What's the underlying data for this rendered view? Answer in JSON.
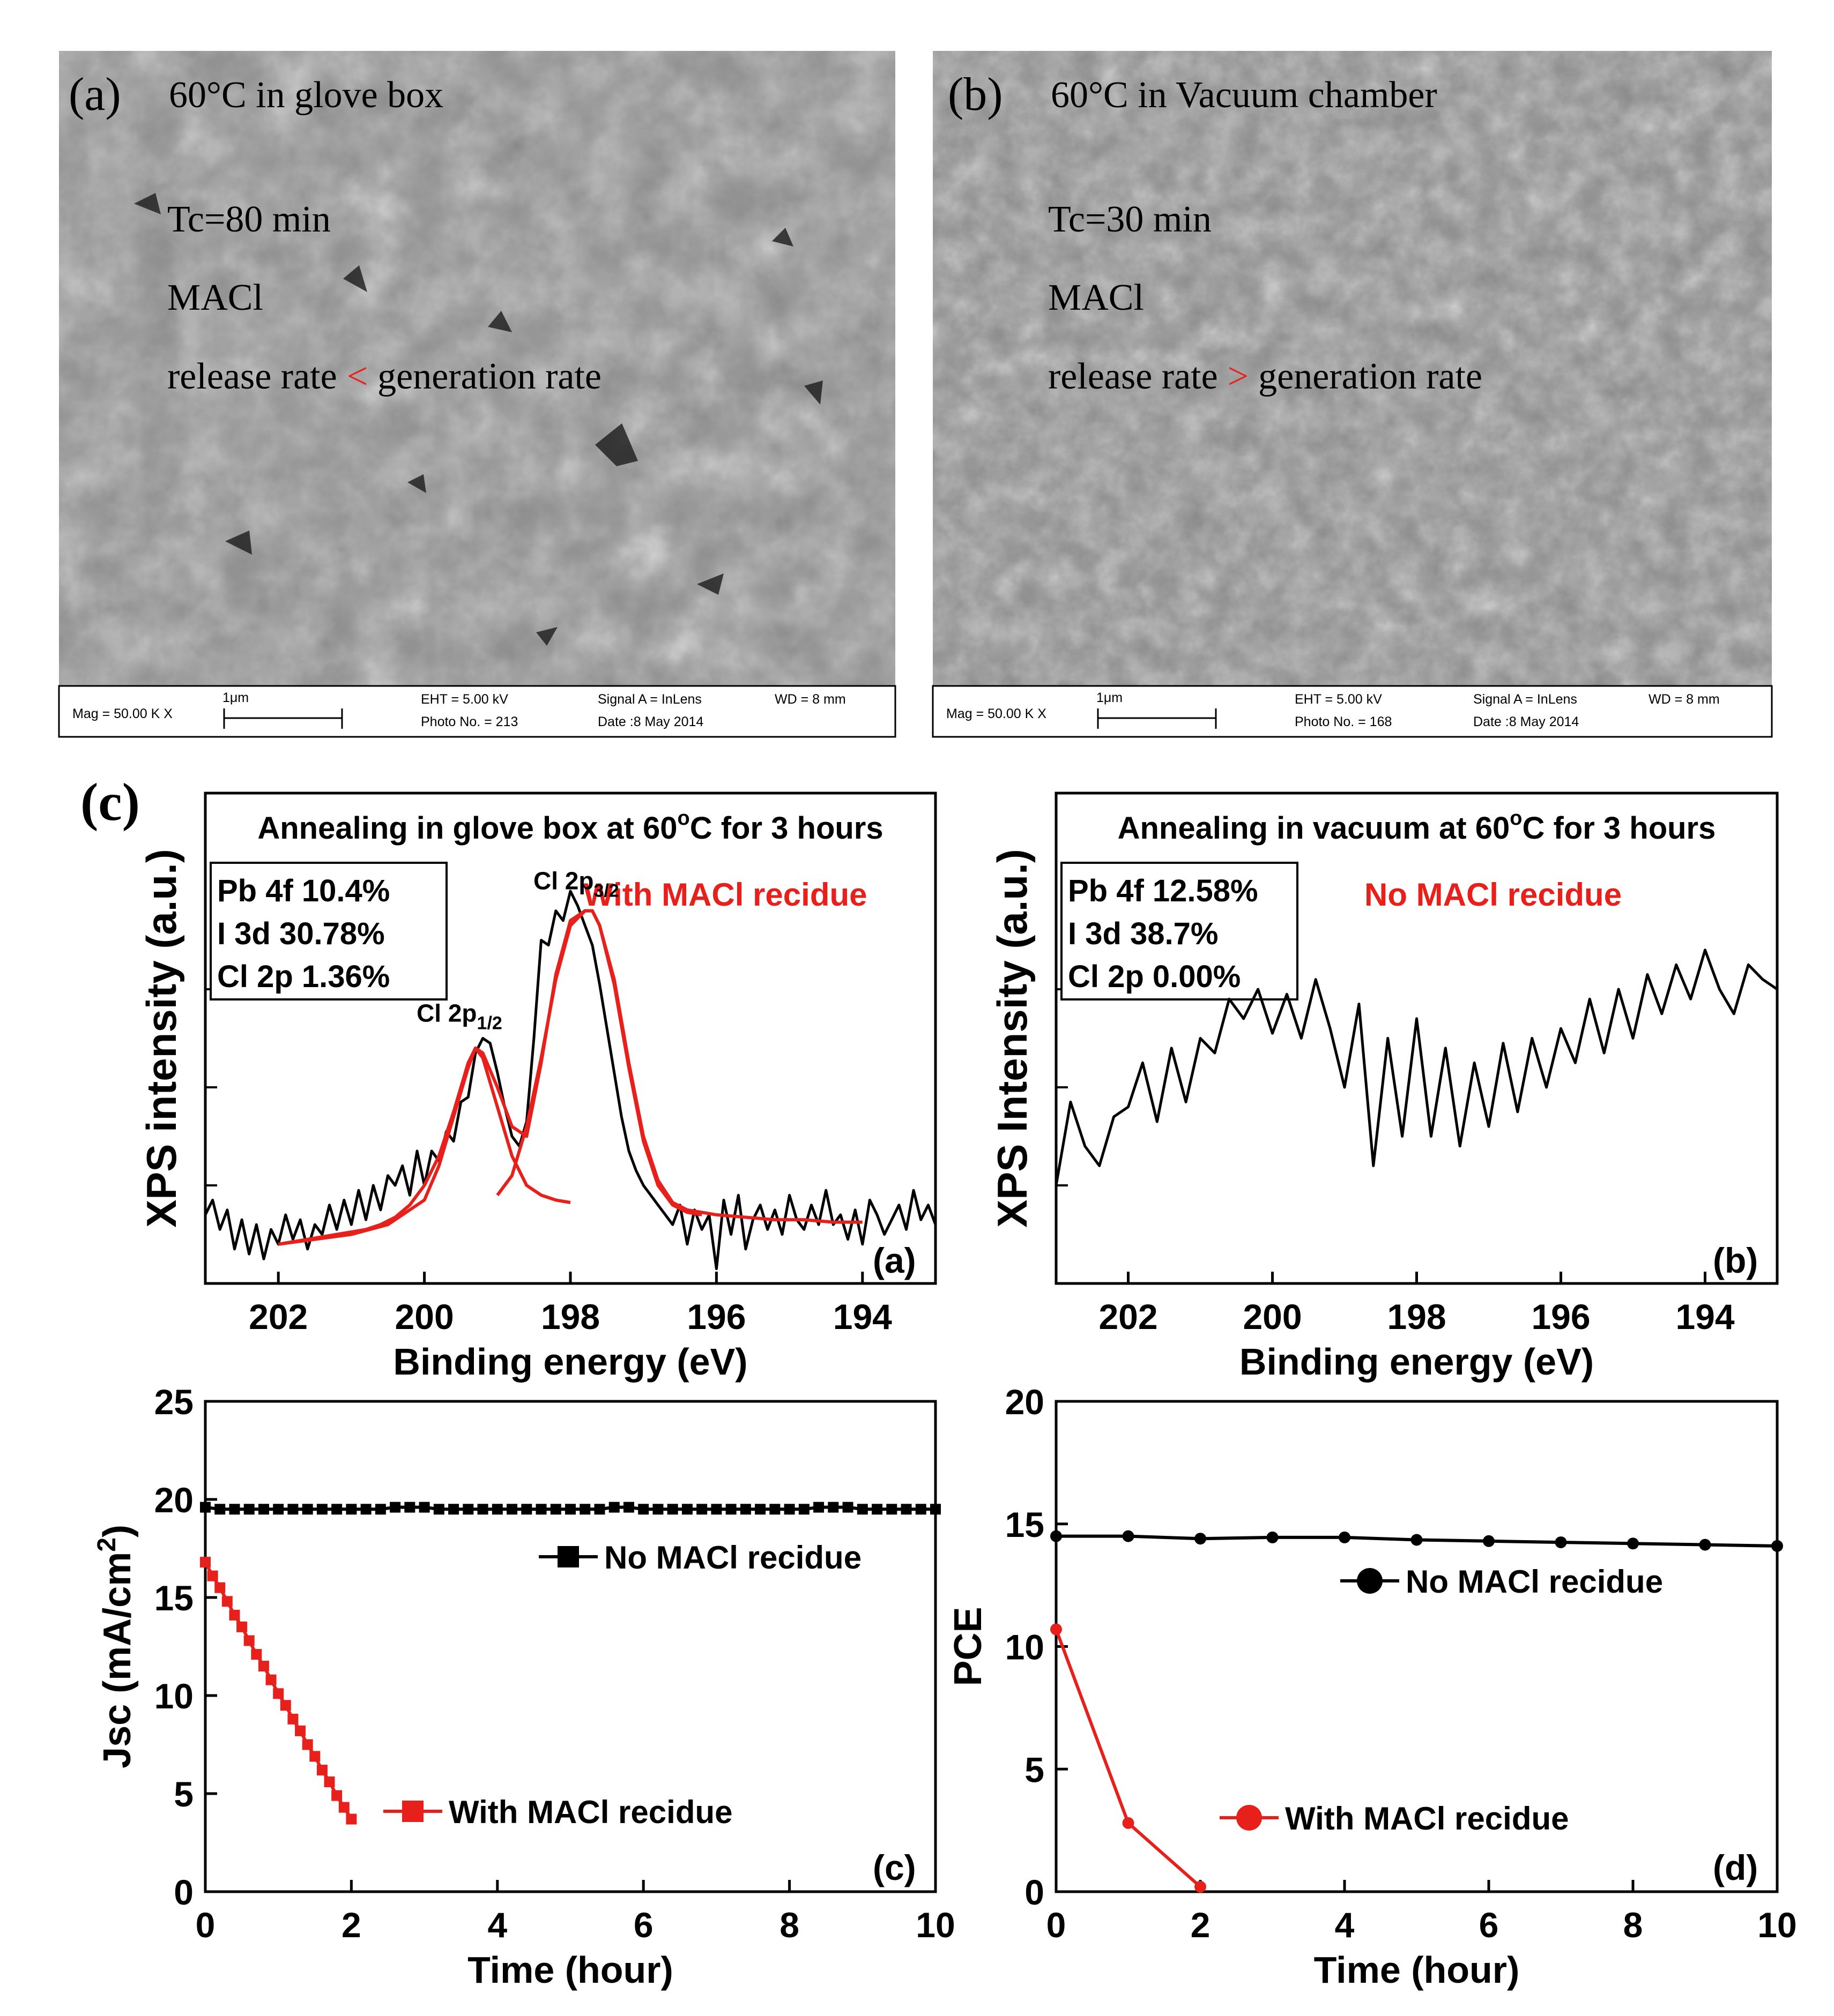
{
  "figure_label_c": "(c)",
  "sem": [
    {
      "id": "a",
      "label": "(a)",
      "title": "60°C in glove box",
      "tc": "Tc=80 min",
      "material": "MACl",
      "rate_left": "release rate",
      "rate_symbol": "<",
      "rate_right": "generation rate",
      "footer": {
        "mag": "Mag =  50.00 K X",
        "scale": "1μm",
        "eht": "EHT =  5.00 kV",
        "photo": "Photo No. = 213",
        "signal": "Signal A = InLens",
        "date": "Date :8 May 2014",
        "wd": "WD =    8 mm"
      }
    },
    {
      "id": "b",
      "label": "(b)",
      "title": "60°C in Vacuum chamber",
      "tc": "Tc=30 min",
      "material": "MACl",
      "rate_left": "release rate",
      "rate_symbol": ">",
      "rate_right": "generation rate",
      "footer": {
        "mag": "Mag =  50.00 K X",
        "scale": "1μm",
        "eht": "EHT =  5.00 kV",
        "photo": "Photo No. = 168",
        "signal": "Signal A = InLens",
        "date": "Date :8 May 2014",
        "wd": "WD =    8 mm"
      }
    }
  ],
  "colors": {
    "black": "#000000",
    "red": "#e8201c",
    "sem_gray": "#8c8c8c"
  },
  "chart_data": [
    {
      "type": "line",
      "panel": "(a)",
      "title": "Annealing in glove box at 60°C for 3 hours",
      "title_main": "Annealing in glove box at 60",
      "title_deg": "o",
      "title_tail": "C for 3 hours",
      "xlabel": "Binding energy (eV)",
      "ylabel": "XPS intensity (a.u.)",
      "xlim": [
        203,
        193
      ],
      "ylim": [
        0,
        1
      ],
      "xticks": [
        "202",
        "200",
        "198",
        "196",
        "194"
      ],
      "xtick_values": [
        202,
        200,
        198,
        196,
        194
      ],
      "composition": [
        "Pb 4f  10.4%",
        "I    3d 30.78%",
        "Cl  2p 1.36%"
      ],
      "note": "With MACl recidue",
      "peak_labels": [
        {
          "main": "Cl 2p",
          "sub": "1/2",
          "x": 199.3,
          "y": 0.49
        },
        {
          "main": "Cl 2p",
          "sub": "3/2",
          "x": 197.7,
          "y": 0.76
        }
      ],
      "series": [
        {
          "name": "raw",
          "color": "#000000",
          "x": [
            203.0,
            202.9,
            202.8,
            202.7,
            202.6,
            202.5,
            202.4,
            202.3,
            202.2,
            202.1,
            202.0,
            201.9,
            201.8,
            201.7,
            201.6,
            201.5,
            201.4,
            201.3,
            201.2,
            201.1,
            201.0,
            200.9,
            200.8,
            200.7,
            200.6,
            200.5,
            200.4,
            200.3,
            200.2,
            200.1,
            200.0,
            199.9,
            199.8,
            199.7,
            199.6,
            199.5,
            199.4,
            199.3,
            199.2,
            199.1,
            199.0,
            198.9,
            198.8,
            198.7,
            198.6,
            198.5,
            198.4,
            198.3,
            198.2,
            198.1,
            198.0,
            197.9,
            197.8,
            197.7,
            197.6,
            197.5,
            197.4,
            197.3,
            197.2,
            197.1,
            197.0,
            196.9,
            196.8,
            196.7,
            196.6,
            196.5,
            196.4,
            196.3,
            196.2,
            196.1,
            196.0,
            195.9,
            195.8,
            195.7,
            195.6,
            195.5,
            195.4,
            195.3,
            195.2,
            195.1,
            195.0,
            194.9,
            194.8,
            194.7,
            194.6,
            194.5,
            194.4,
            194.3,
            194.2,
            194.1,
            194.0,
            193.9,
            193.8,
            193.7,
            193.6,
            193.5,
            193.4,
            193.3,
            193.2,
            193.1,
            193.0
          ],
          "y": [
            0.14,
            0.17,
            0.11,
            0.15,
            0.07,
            0.13,
            0.06,
            0.12,
            0.05,
            0.11,
            0.08,
            0.14,
            0.09,
            0.13,
            0.07,
            0.12,
            0.1,
            0.16,
            0.11,
            0.17,
            0.12,
            0.19,
            0.13,
            0.2,
            0.15,
            0.22,
            0.2,
            0.24,
            0.18,
            0.27,
            0.2,
            0.27,
            0.25,
            0.31,
            0.29,
            0.37,
            0.38,
            0.47,
            0.5,
            0.49,
            0.43,
            0.36,
            0.3,
            0.28,
            0.33,
            0.5,
            0.7,
            0.69,
            0.76,
            0.74,
            0.8,
            0.77,
            0.73,
            0.69,
            0.61,
            0.52,
            0.43,
            0.34,
            0.27,
            0.23,
            0.2,
            0.18,
            0.16,
            0.14,
            0.12,
            0.16,
            0.08,
            0.15,
            0.11,
            0.14,
            0.03,
            0.17,
            0.1,
            0.18,
            0.07,
            0.13,
            0.16,
            0.11,
            0.15,
            0.1,
            0.18,
            0.13,
            0.11,
            0.16,
            0.12,
            0.19,
            0.12,
            0.14,
            0.09,
            0.15,
            0.08,
            0.17,
            0.14,
            0.1,
            0.13,
            0.16,
            0.11,
            0.19,
            0.13,
            0.16,
            0.12
          ]
        },
        {
          "name": "fit",
          "color": "#e8201c",
          "x": [
            202.0,
            201.8,
            201.6,
            201.4,
            201.2,
            201.0,
            200.8,
            200.6,
            200.4,
            200.2,
            200.0,
            199.8,
            199.6,
            199.4,
            199.3,
            199.2,
            199.0,
            198.8,
            198.6,
            198.4,
            198.2,
            198.0,
            197.8,
            197.7,
            197.6,
            197.4,
            197.2,
            197.0,
            196.8,
            196.6,
            196.4,
            196.2,
            196.0,
            195.6,
            195.2,
            194.8,
            194.4,
            194.0
          ],
          "y": [
            0.08,
            0.085,
            0.09,
            0.095,
            0.1,
            0.105,
            0.11,
            0.12,
            0.135,
            0.16,
            0.2,
            0.26,
            0.35,
            0.45,
            0.48,
            0.47,
            0.4,
            0.32,
            0.3,
            0.45,
            0.63,
            0.74,
            0.76,
            0.76,
            0.73,
            0.62,
            0.45,
            0.3,
            0.21,
            0.165,
            0.15,
            0.145,
            0.14,
            0.135,
            0.13,
            0.13,
            0.125,
            0.125
          ]
        },
        {
          "name": "fit_peak_1/2",
          "color": "#e8201c",
          "x": [
            202.0,
            201.5,
            201.0,
            200.5,
            200.0,
            199.8,
            199.6,
            199.4,
            199.3,
            199.2,
            199.0,
            198.8,
            198.6,
            198.4,
            198.2,
            198.0
          ],
          "y": [
            0.08,
            0.09,
            0.1,
            0.12,
            0.17,
            0.24,
            0.34,
            0.44,
            0.48,
            0.46,
            0.36,
            0.26,
            0.2,
            0.18,
            0.17,
            0.165
          ]
        },
        {
          "name": "fit_peak_3/2",
          "color": "#e8201c",
          "x": [
            199.0,
            198.8,
            198.6,
            198.4,
            198.2,
            198.0,
            197.8,
            197.7,
            197.6,
            197.4,
            197.2,
            197.0,
            196.8,
            196.6,
            196.4,
            196.2
          ],
          "y": [
            0.18,
            0.22,
            0.32,
            0.46,
            0.62,
            0.73,
            0.76,
            0.76,
            0.73,
            0.61,
            0.44,
            0.29,
            0.2,
            0.16,
            0.145,
            0.14
          ]
        }
      ]
    },
    {
      "type": "line",
      "panel": "(b)",
      "title": "Annealing in vacuum at 60°C for 3 hours",
      "title_main": "Annealing in vacuum at 60",
      "title_deg": "o",
      "title_tail": "C for 3 hours",
      "xlabel": "Binding energy (eV)",
      "ylabel": "XPS Intensity (a.u.)",
      "xlim": [
        203,
        193
      ],
      "ylim": [
        0,
        1
      ],
      "xticks": [
        "202",
        "200",
        "198",
        "196",
        "194"
      ],
      "xtick_values": [
        202,
        200,
        198,
        196,
        194
      ],
      "composition": [
        "Pb 4f  12.58%",
        "I    3d  38.7%",
        "Cl  2p 0.00%"
      ],
      "note": "No MACl recidue",
      "series": [
        {
          "name": "raw",
          "color": "#000000",
          "x": [
            203.0,
            202.8,
            202.6,
            202.4,
            202.2,
            202.0,
            201.8,
            201.6,
            201.4,
            201.2,
            201.0,
            200.8,
            200.6,
            200.4,
            200.2,
            200.0,
            199.8,
            199.6,
            199.4,
            199.2,
            199.0,
            198.8,
            198.6,
            198.4,
            198.2,
            198.0,
            197.8,
            197.6,
            197.4,
            197.2,
            197.0,
            196.8,
            196.6,
            196.4,
            196.2,
            196.0,
            195.8,
            195.6,
            195.4,
            195.2,
            195.0,
            194.8,
            194.6,
            194.4,
            194.2,
            194.0,
            193.8,
            193.6,
            193.4,
            193.2,
            193.0
          ],
          "y": [
            0.2,
            0.37,
            0.28,
            0.24,
            0.34,
            0.36,
            0.45,
            0.33,
            0.48,
            0.37,
            0.5,
            0.47,
            0.58,
            0.54,
            0.6,
            0.51,
            0.59,
            0.5,
            0.62,
            0.52,
            0.4,
            0.57,
            0.24,
            0.5,
            0.3,
            0.54,
            0.3,
            0.48,
            0.28,
            0.45,
            0.32,
            0.49,
            0.35,
            0.5,
            0.4,
            0.52,
            0.45,
            0.58,
            0.47,
            0.6,
            0.5,
            0.63,
            0.55,
            0.65,
            0.58,
            0.68,
            0.6,
            0.55,
            0.65,
            0.62,
            0.6
          ]
        }
      ]
    },
    {
      "type": "line",
      "panel": "(c)",
      "xlabel": "Time (hour)",
      "ylabel": "Jsc (mA/cm",
      "ylabel_sup": "2",
      "ylabel_tail": ")",
      "xlim": [
        0,
        10
      ],
      "ylim": [
        0,
        25
      ],
      "xticks": [
        "0",
        "2",
        "4",
        "6",
        "8",
        "10"
      ],
      "xtick_values": [
        0,
        2,
        4,
        6,
        8,
        10
      ],
      "yticks": [
        "0",
        "5",
        "10",
        "15",
        "20",
        "25"
      ],
      "ytick_values": [
        0,
        5,
        10,
        15,
        20,
        25
      ],
      "series": [
        {
          "name": "No MACl recidue",
          "color": "#000000",
          "marker": "square",
          "x": [
            0,
            0.2,
            0.4,
            0.6,
            0.8,
            1.0,
            1.2,
            1.4,
            1.6,
            1.8,
            2.0,
            2.2,
            2.4,
            2.6,
            2.8,
            3.0,
            3.2,
            3.4,
            3.6,
            3.8,
            4.0,
            4.2,
            4.4,
            4.6,
            4.8,
            5.0,
            5.2,
            5.4,
            5.6,
            5.8,
            6.0,
            6.2,
            6.4,
            6.6,
            6.8,
            7.0,
            7.2,
            7.4,
            7.6,
            7.8,
            8.0,
            8.2,
            8.4,
            8.6,
            8.8,
            9.0,
            9.2,
            9.4,
            9.6,
            9.8,
            10.0
          ],
          "y": [
            19.6,
            19.5,
            19.5,
            19.5,
            19.5,
            19.5,
            19.5,
            19.5,
            19.5,
            19.5,
            19.5,
            19.5,
            19.5,
            19.6,
            19.6,
            19.6,
            19.5,
            19.5,
            19.5,
            19.5,
            19.5,
            19.5,
            19.5,
            19.5,
            19.5,
            19.5,
            19.5,
            19.5,
            19.6,
            19.6,
            19.5,
            19.5,
            19.5,
            19.5,
            19.5,
            19.5,
            19.5,
            19.5,
            19.5,
            19.5,
            19.5,
            19.5,
            19.6,
            19.6,
            19.6,
            19.5,
            19.5,
            19.5,
            19.5,
            19.5,
            19.5
          ]
        },
        {
          "name": "With MACl recidue",
          "color": "#e8201c",
          "marker": "square",
          "x": [
            0,
            0.1,
            0.2,
            0.3,
            0.4,
            0.5,
            0.6,
            0.7,
            0.8,
            0.9,
            1.0,
            1.1,
            1.2,
            1.3,
            1.4,
            1.5,
            1.6,
            1.7,
            1.8,
            1.9,
            2.0
          ],
          "y": [
            16.8,
            16.1,
            15.5,
            14.8,
            14.1,
            13.5,
            12.8,
            12.1,
            11.5,
            10.8,
            10.1,
            9.5,
            8.8,
            8.2,
            7.5,
            6.9,
            6.2,
            5.6,
            4.9,
            4.3,
            3.7
          ]
        }
      ]
    },
    {
      "type": "line",
      "panel": "(d)",
      "xlabel": "Time (hour)",
      "ylabel": "PCE",
      "xlim": [
        0,
        10
      ],
      "ylim": [
        0,
        20
      ],
      "xticks": [
        "0",
        "2",
        "4",
        "6",
        "8",
        "10"
      ],
      "xtick_values": [
        0,
        2,
        4,
        6,
        8,
        10
      ],
      "yticks": [
        "0",
        "5",
        "10",
        "15",
        "20"
      ],
      "ytick_values": [
        0,
        5,
        10,
        15,
        20
      ],
      "series": [
        {
          "name": "No MACl recidue",
          "color": "#000000",
          "marker": "circle",
          "x": [
            0,
            1,
            2,
            3,
            4,
            5,
            6,
            7,
            8,
            9,
            10
          ],
          "y": [
            14.5,
            14.5,
            14.4,
            14.45,
            14.45,
            14.35,
            14.3,
            14.25,
            14.2,
            14.15,
            14.1
          ]
        },
        {
          "name": "With MACl recidue",
          "color": "#e8201c",
          "marker": "circle",
          "x": [
            0,
            1,
            2
          ],
          "y": [
            10.7,
            2.8,
            0.2
          ]
        }
      ]
    }
  ]
}
